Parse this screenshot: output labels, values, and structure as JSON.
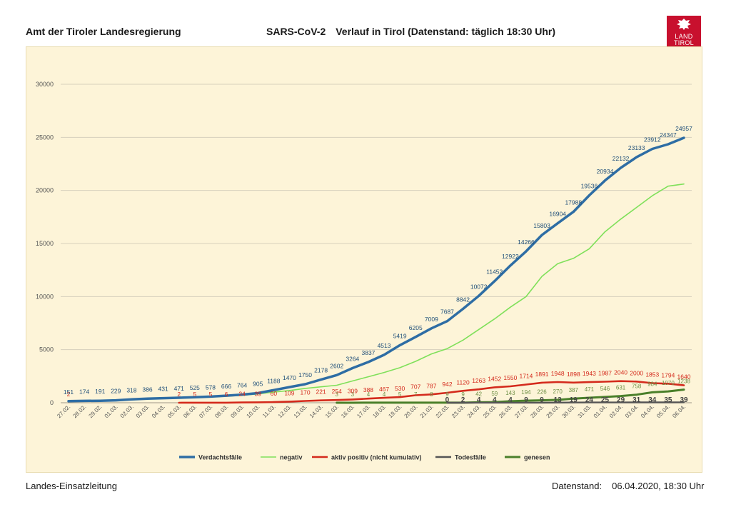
{
  "header": {
    "org": "Amt der Tiroler Landesregierung",
    "title_part1": "SARS-CoV-2",
    "title_part2": "Verlauf in Tirol (Datenstand: täglich 18:30 Uhr)"
  },
  "logo": {
    "line1": "LAND",
    "line2": "TIROL"
  },
  "footer": {
    "left": "Landes-Einsatzleitung",
    "label": "Datenstand:",
    "value": "06.04.2020, 18:30 Uhr"
  },
  "colors": {
    "verdacht": "#2e6da4",
    "negativ": "#7fe05a",
    "aktiv": "#d42a1c",
    "tod": "#555555",
    "genesen": "#4a7f2a",
    "panel": "#fdf4d8",
    "grid": "#d6d0bd"
  },
  "chart_data": {
    "type": "line",
    "ylim": [
      0,
      30000
    ],
    "yticks": [
      "0",
      "5000",
      "10000",
      "15000",
      "20000",
      "25000",
      "30000"
    ],
    "categories": [
      "27.02.",
      "28.02.",
      "29.02.",
      "01.03.",
      "02.03.",
      "03.03.",
      "04.03.",
      "05.03.",
      "06.03.",
      "07.03.",
      "08.03.",
      "09.03.",
      "10.03.",
      "11.03.",
      "12.03.",
      "13.03.",
      "14.03.",
      "15.03.",
      "16.03.",
      "17.03.",
      "18.03.",
      "19.03.",
      "20.03.",
      "21.03.",
      "22.03.",
      "23.03.",
      "24.03.",
      "25.03.",
      "26.03.",
      "27.03.",
      "28.03.",
      "29.03.",
      "30.03.",
      "31.03.",
      "01.04.",
      "02.04.",
      "03.04.",
      "04.04.",
      "05.04.",
      "06.04."
    ],
    "legend_position": "bottom",
    "series": [
      {
        "name": "Verdachtsfälle",
        "key": "verdacht",
        "values": [
          151,
          174,
          191,
          229,
          318,
          386,
          431,
          471,
          525,
          578,
          666,
          764,
          905,
          1188,
          1470,
          1750,
          2178,
          2602,
          3264,
          3837,
          4513,
          5419,
          6205,
          7009,
          7687,
          8842,
          10072,
          11452,
          12922,
          14266,
          15803,
          16904,
          17988,
          19536,
          20934,
          22132,
          23133,
          23912,
          24347,
          24957
        ],
        "labels": [
          "151",
          "174",
          "191",
          "229",
          "318",
          "386",
          "431",
          "471",
          "525",
          "578",
          "666",
          "764",
          "905",
          "1188",
          "1470",
          "1750",
          "2178",
          "2602",
          "3264",
          "3837",
          "4513",
          "5419",
          "6205",
          "7009",
          "7687",
          "8842",
          "10072",
          "11452",
          "12922",
          "14266",
          "15803",
          "16904",
          "17988",
          "19536",
          "20934",
          "22132",
          "23133",
          "23912",
          "24347",
          "24957"
        ]
      },
      {
        "name": "negativ",
        "key": "negativ",
        "values": [
          149,
          170,
          186,
          222,
          300,
          360,
          400,
          440,
          490,
          540,
          620,
          700,
          830,
          1000,
          1150,
          1350,
          1500,
          1650,
          2050,
          2450,
          2850,
          3300,
          3900,
          4600,
          5100,
          5900,
          6900,
          7900,
          9000,
          10000,
          11900,
          13100,
          13600,
          14500,
          16100,
          17300,
          18400,
          19500,
          20400,
          20600
        ],
        "labels": []
      },
      {
        "name": "aktiv positiv (nicht kumulativ)",
        "key": "aktiv",
        "values": [
          2,
          null,
          null,
          null,
          null,
          null,
          null,
          2,
          5,
          5,
          6,
          24,
          39,
          60,
          109,
          170,
          221,
          254,
          309,
          388,
          467,
          530,
          707,
          787,
          942,
          1120,
          1263,
          1452,
          1550,
          1714,
          1891,
          1948,
          1898,
          1943,
          1987,
          2040,
          2000,
          1853,
          1794,
          1640
        ],
        "labels": [
          "2",
          "",
          "",
          "",
          "",
          "",
          "",
          "2",
          "5",
          "5",
          "6",
          "24",
          "39",
          "60",
          "109",
          "170",
          "221",
          "254",
          "309",
          "388",
          "467",
          "530",
          "707",
          "787",
          "942",
          "1120",
          "1263",
          "1452",
          "1550",
          "1714",
          "1891",
          "1948",
          "1898",
          "1943",
          "1987",
          "2040",
          "2000",
          "1853",
          "1794",
          "1640"
        ]
      },
      {
        "name": "Todesfälle",
        "key": "tod",
        "values": [
          null,
          null,
          null,
          null,
          null,
          null,
          null,
          null,
          null,
          null,
          null,
          null,
          null,
          null,
          null,
          null,
          null,
          null,
          null,
          null,
          null,
          null,
          null,
          null,
          0,
          2,
          4,
          4,
          4,
          9,
          9,
          13,
          19,
          24,
          25,
          29,
          31,
          34,
          35,
          39
        ],
        "labels": [
          "",
          "",
          "",
          "",
          "",
          "",
          "",
          "",
          "",
          "",
          "",
          "",
          "",
          "",
          "",
          "",
          "",
          "",
          "",
          "",
          "",
          "",
          "",
          "",
          "0",
          "2",
          "4",
          "4",
          "4",
          "9",
          "9",
          "13",
          "19",
          "24",
          "25",
          "29",
          "31",
          "34",
          "35",
          "39"
        ]
      },
      {
        "name": "genesen",
        "key": "genesen",
        "values": [
          null,
          null,
          null,
          null,
          null,
          null,
          null,
          null,
          null,
          null,
          null,
          null,
          null,
          null,
          null,
          null,
          null,
          3,
          3,
          4,
          4,
          5,
          7,
          8,
          9,
          9,
          42,
          59,
          143,
          194,
          226,
          270,
          387,
          471,
          546,
          631,
          758,
          984,
          1070,
          1238
        ],
        "labels": [
          "",
          "",
          "",
          "",
          "",
          "",
          "",
          "",
          "",
          "",
          "",
          "",
          "",
          "",
          "",
          "",
          "",
          "3",
          "3",
          "4",
          "4",
          "5",
          "7",
          "8",
          "9",
          "9",
          "42",
          "59",
          "143",
          "194",
          "226",
          "270",
          "387",
          "471",
          "546",
          "631",
          "758",
          "984",
          "1070",
          "1238"
        ]
      }
    ]
  }
}
